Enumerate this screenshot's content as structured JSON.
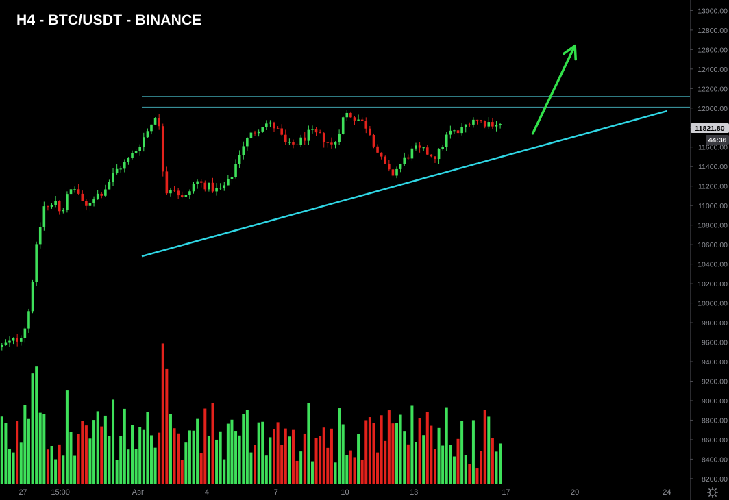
{
  "header": {
    "title": "H4 - BTC/USDT - BINANCE"
  },
  "colors": {
    "background": "#000000",
    "up": "#3ee05a",
    "down": "#e3221c",
    "trendline": "#2fd6e4",
    "resistance": "#3fa2ad",
    "arrow": "#32e04a",
    "axis_text": "#8d8f96",
    "price_badge_bg": "#cfcfd4",
    "timer_badge_bg": "#3a3a40"
  },
  "badges": {
    "last_price": "11821.80",
    "countdown": "44:36"
  },
  "settings": {
    "icon": "gear-icon"
  },
  "chart_data": {
    "type": "candlestick",
    "title": "H4 - BTC/USDT - BINANCE",
    "y_axis": {
      "range": [
        8150,
        13080
      ],
      "ticks": [
        "8200.00",
        "8400.00",
        "8600.00",
        "8800.00",
        "9000.00",
        "9200.00",
        "9400.00",
        "9600.00",
        "9800.00",
        "10000.00",
        "10200.00",
        "10400.00",
        "10600.00",
        "10800.00",
        "11000.00",
        "11200.00",
        "11400.00",
        "11600.00",
        "11800.00",
        "12000.00",
        "12200.00",
        "12400.00",
        "12600.00",
        "12800.00",
        "13000.00"
      ]
    },
    "x_axis": {
      "range": [
        "Jul 26 00:00",
        "Aug 25 00:00"
      ],
      "ticks": [
        {
          "label": "27",
          "time": "Jul 27"
        },
        {
          "label": "15:00",
          "time": "Jul 28 15:00"
        },
        {
          "label": "Авг",
          "time": "Aug 1"
        },
        {
          "label": "4",
          "time": "Aug 4"
        },
        {
          "label": "7",
          "time": "Aug 7"
        },
        {
          "label": "10",
          "time": "Aug 10"
        },
        {
          "label": "13",
          "time": "Aug 13"
        },
        {
          "label": "17",
          "time": "Aug 17"
        },
        {
          "label": "20",
          "time": "Aug 20"
        },
        {
          "label": "24",
          "time": "Aug 24"
        }
      ]
    },
    "grid": false,
    "volume_visible": true,
    "price_path": [
      {
        "time": "Jul 26 00:00",
        "price": 9550
      },
      {
        "time": "Jul 26 20:00",
        "price": 9640
      },
      {
        "time": "Jul 27 04:00",
        "price": 9800
      },
      {
        "time": "Jul 27 08:00",
        "price": 10050
      },
      {
        "time": "Jul 27 12:00",
        "price": 10450
      },
      {
        "time": "Jul 27 20:00",
        "price": 10900
      },
      {
        "time": "Jul 28 00:00",
        "price": 11080
      },
      {
        "time": "Jul 28 04:00",
        "price": 10880
      },
      {
        "time": "Jul 28 08:00",
        "price": 11100
      },
      {
        "time": "Jul 28 16:00",
        "price": 10920
      },
      {
        "time": "Jul 29 00:00",
        "price": 11150
      },
      {
        "time": "Jul 29 08:00",
        "price": 11180
      },
      {
        "time": "Jul 29 16:00",
        "price": 10950
      },
      {
        "time": "Jul 30 00:00",
        "price": 11080
      },
      {
        "time": "Jul 30 12:00",
        "price": 11150
      },
      {
        "time": "Jul 31 00:00",
        "price": 11350
      },
      {
        "time": "Jul 31 12:00",
        "price": 11450
      },
      {
        "time": "Aug 1 00:00",
        "price": 11600
      },
      {
        "time": "Aug 1 12:00",
        "price": 11800
      },
      {
        "time": "Aug 1 20:00",
        "price": 11980
      },
      {
        "time": "Aug 2 00:00",
        "price": 11600
      },
      {
        "time": "Aug 2 04:00",
        "price": 11150
      },
      {
        "time": "Aug 2 12:00",
        "price": 11200
      },
      {
        "time": "Aug 3 00:00",
        "price": 11050
      },
      {
        "time": "Aug 3 12:00",
        "price": 11250
      },
      {
        "time": "Aug 4 00:00",
        "price": 11200
      },
      {
        "time": "Aug 4 12:00",
        "price": 11150
      },
      {
        "time": "Aug 5 00:00",
        "price": 11250
      },
      {
        "time": "Aug 5 12:00",
        "price": 11600
      },
      {
        "time": "Aug 6 00:00",
        "price": 11750
      },
      {
        "time": "Aug 6 12:00",
        "price": 11850
      },
      {
        "time": "Aug 7 00:00",
        "price": 11800
      },
      {
        "time": "Aug 7 12:00",
        "price": 11600
      },
      {
        "time": "Aug 8 00:00",
        "price": 11650
      },
      {
        "time": "Aug 8 12:00",
        "price": 11750
      },
      {
        "time": "Aug 9 00:00",
        "price": 11700
      },
      {
        "time": "Aug 9 12:00",
        "price": 11600
      },
      {
        "time": "Aug 10 00:00",
        "price": 11950
      },
      {
        "time": "Aug 10 12:00",
        "price": 11900
      },
      {
        "time": "Aug 11 00:00",
        "price": 11800
      },
      {
        "time": "Aug 11 12:00",
        "price": 11500
      },
      {
        "time": "Aug 12 00:00",
        "price": 11300
      },
      {
        "time": "Aug 12 12:00",
        "price": 11450
      },
      {
        "time": "Aug 13 00:00",
        "price": 11580
      },
      {
        "time": "Aug 13 12:00",
        "price": 11550
      },
      {
        "time": "Aug 14 00:00",
        "price": 11500
      },
      {
        "time": "Aug 14 12:00",
        "price": 11750
      },
      {
        "time": "Aug 15 00:00",
        "price": 11750
      },
      {
        "time": "Aug 15 12:00",
        "price": 11900
      },
      {
        "time": "Aug 16 00:00",
        "price": 11850
      },
      {
        "time": "Aug 16 12:00",
        "price": 11850
      },
      {
        "time": "Aug 16 20:00",
        "price": 11820
      }
    ],
    "annotations": [
      {
        "kind": "horizontal-line",
        "price": 12120,
        "from": "Aug 1 04:00"
      },
      {
        "kind": "horizontal-line",
        "price": 12010,
        "from": "Aug 1 04:00"
      },
      {
        "kind": "trendline",
        "from": {
          "time": "Aug 1 04:00",
          "price": 10480
        },
        "to": {
          "time": "Aug 24 00:00",
          "price": 11970
        }
      },
      {
        "kind": "arrow",
        "from": {
          "time": "Aug 18 04:00",
          "price": 11740
        },
        "to": {
          "time": "Aug 20 00:00",
          "price": 12640
        }
      }
    ]
  }
}
